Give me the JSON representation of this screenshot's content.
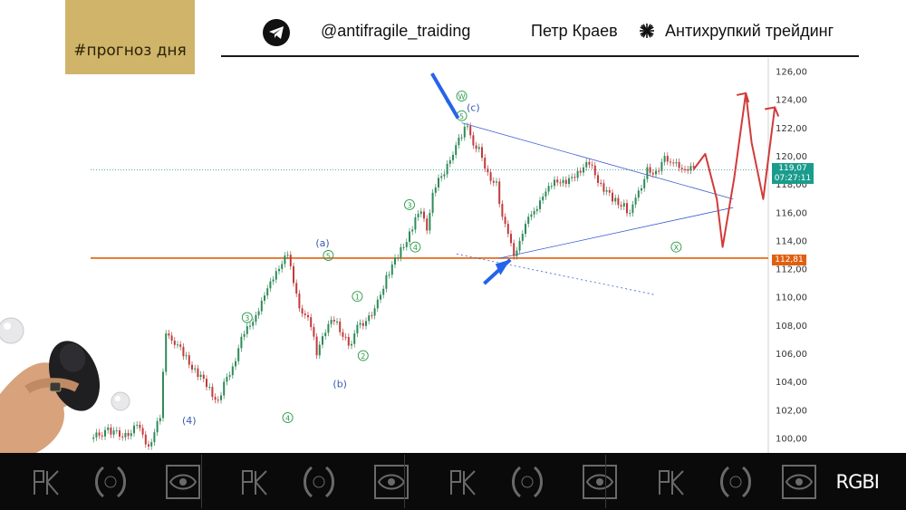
{
  "tag": {
    "label": "#прогноз дня"
  },
  "header": {
    "handle": "@antifragile_traiding",
    "author": "Петр Краев",
    "project": "Антихрупкий трейдинг",
    "icons": [
      "telegram-icon",
      "star-burst-icon"
    ]
  },
  "chart_data": {
    "type": "candlestick",
    "y_axis": {
      "position": "right",
      "range": [
        99,
        127
      ],
      "ticks": [
        "126,00",
        "124,00",
        "122,00",
        "120,00",
        "118,00",
        "116,00",
        "114,00",
        "112,00",
        "110,00",
        "108,00",
        "106,00",
        "104,00",
        "102,00",
        "100,00"
      ]
    },
    "price_path": [
      [
        0,
        100.0
      ],
      [
        3,
        100.6
      ],
      [
        6,
        100.2
      ],
      [
        8,
        100.9
      ],
      [
        10,
        99.5
      ],
      [
        12,
        101.5
      ],
      [
        13,
        107.5
      ],
      [
        14,
        107.2
      ],
      [
        16,
        106.0
      ],
      [
        18,
        104.8
      ],
      [
        20,
        103.9
      ],
      [
        22,
        102.5
      ],
      [
        23,
        103.8
      ],
      [
        24,
        104.5
      ],
      [
        26,
        107.0
      ],
      [
        28,
        108.5
      ],
      [
        30,
        110.0
      ],
      [
        32,
        112.0
      ],
      [
        34,
        113.0
      ],
      [
        35,
        111.0
      ],
      [
        36,
        109.5
      ],
      [
        38,
        108.0
      ],
      [
        39,
        106.0
      ],
      [
        40,
        107.5
      ],
      [
        42,
        108.5
      ],
      [
        44,
        107.0
      ],
      [
        45,
        106.5
      ],
      [
        46,
        108.0
      ],
      [
        48,
        108.5
      ],
      [
        49,
        109.0
      ],
      [
        51,
        111.5
      ],
      [
        53,
        113.0
      ],
      [
        55,
        114.5
      ],
      [
        56,
        115.5
      ],
      [
        57,
        116.0
      ],
      [
        58,
        115.0
      ],
      [
        59,
        117.5
      ],
      [
        61,
        119.0
      ],
      [
        62,
        120.0
      ],
      [
        64,
        121.5
      ],
      [
        65,
        122.3
      ],
      [
        66,
        121.0
      ],
      [
        67,
        120.5
      ],
      [
        68,
        119.0
      ],
      [
        70,
        118.0
      ],
      [
        71,
        115.5
      ],
      [
        72,
        114.5
      ],
      [
        73,
        113.2
      ],
      [
        74,
        114.0
      ],
      [
        75,
        115.0
      ],
      [
        76,
        116.0
      ],
      [
        78,
        117.0
      ],
      [
        80,
        118.5
      ],
      [
        82,
        118.0
      ],
      [
        84,
        119.0
      ],
      [
        86,
        119.5
      ],
      [
        88,
        118.0
      ],
      [
        90,
        117.0
      ],
      [
        92,
        116.5
      ],
      [
        93,
        115.8
      ],
      [
        94,
        117.0
      ],
      [
        95,
        118.0
      ],
      [
        96,
        119.3
      ],
      [
        97,
        118.5
      ],
      [
        98,
        119.0
      ],
      [
        99,
        120.3
      ],
      [
        100,
        119.5
      ],
      [
        102,
        119.3
      ],
      [
        104,
        119.1
      ]
    ],
    "current_price": {
      "value": "119,07",
      "countdown": "07:27:11"
    },
    "support_level": {
      "value": 112.81,
      "label": "112,81"
    },
    "triangle": {
      "upper": [
        [
          64,
          122.4
        ],
        [
          103,
          117.0
        ]
      ],
      "lower": [
        [
          72,
          112.8
        ],
        [
          103,
          116.4
        ]
      ],
      "dashed_projection": [
        [
          60,
          113.1
        ],
        [
          110,
          110.2
        ]
      ]
    },
    "wave_labels": [
      {
        "text": "W",
        "style": "circle-green",
        "x": 64,
        "y": 124.3
      },
      {
        "text": "(c)",
        "style": "blue",
        "x": 66,
        "y": 123.5
      },
      {
        "text": "5",
        "style": "circle-green",
        "x": 64,
        "y": 122.9
      },
      {
        "text": "(a)",
        "style": "blue",
        "x": 40,
        "y": 113.9
      },
      {
        "text": "5",
        "style": "circle-green",
        "x": 41,
        "y": 113.0
      },
      {
        "text": "3",
        "style": "circle-green",
        "x": 55,
        "y": 116.6
      },
      {
        "text": "4",
        "style": "circle-green",
        "x": 56,
        "y": 113.6
      },
      {
        "text": "1",
        "style": "circle-green",
        "x": 46,
        "y": 110.1
      },
      {
        "text": "2",
        "style": "circle-green",
        "x": 47,
        "y": 105.9
      },
      {
        "text": "(b)",
        "style": "blue",
        "x": 43,
        "y": 103.9
      },
      {
        "text": "3",
        "style": "circle-green",
        "x": 27,
        "y": 108.6
      },
      {
        "text": "4",
        "style": "circle-green",
        "x": 34,
        "y": 101.5
      },
      {
        "text": "(4)",
        "style": "blue",
        "x": 17,
        "y": 101.3
      },
      {
        "text": "X",
        "style": "circle-green",
        "x": 101,
        "y": 113.6
      }
    ],
    "forecast_path": [
      [
        104,
        119.1
      ],
      [
        106,
        120.2
      ],
      [
        108,
        117.0
      ],
      [
        109,
        113.6
      ],
      [
        111,
        118.5
      ],
      [
        113,
        124.5
      ],
      [
        114,
        121.0
      ],
      [
        116,
        117.0
      ],
      [
        118,
        123.5
      ]
    ]
  },
  "footer": {
    "brand": "RGBI"
  }
}
